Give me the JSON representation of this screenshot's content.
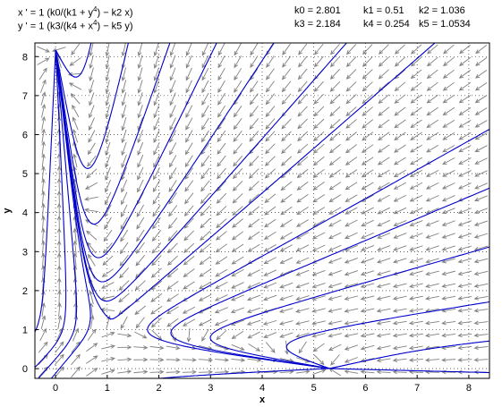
{
  "equations": {
    "x_prefix": "x ' = 1 (k0/(k1 + y",
    "x_exp": "4",
    "x_suffix": ") − k2 x)",
    "y_prefix": "y ' = 1 (k3/(k4 + x",
    "y_exp": "4",
    "y_suffix": ") − k5 y)"
  },
  "parameters": [
    {
      "label": "k0 = 2.801"
    },
    {
      "label": "k1 = 0.51"
    },
    {
      "label": "k2 = 1.036"
    },
    {
      "label": "k3 = 2.184"
    },
    {
      "label": "k4 = 0.254"
    },
    {
      "label": "k5 = 1.0534"
    }
  ],
  "chart_data": {
    "type": "scatter",
    "subtype": "phase-plane direction field with trajectories",
    "title": "",
    "xlabel": "x",
    "ylabel": "y",
    "xlim": [
      -0.4,
      8.4
    ],
    "ylim": [
      -0.25,
      8.35
    ],
    "xticks": [
      "0",
      "1",
      "2",
      "3",
      "4",
      "5",
      "6",
      "7",
      "8"
    ],
    "yticks": [
      "0",
      "1",
      "2",
      "3",
      "4",
      "5",
      "6",
      "7",
      "8"
    ],
    "grid": true,
    "params": {
      "k0": 2.801,
      "k1": 0.51,
      "k2": 1.036,
      "k3": 2.184,
      "k4": 0.254,
      "k5": 1.0534
    },
    "trajectory_color": "#0000cc",
    "arrow_color": "#808080",
    "trajectories": [
      {
        "x0": 0.6,
        "y0": 7.9
      },
      {
        "x0": 1.4,
        "y0": 8.3
      },
      {
        "x0": 2.2,
        "y0": 8.3
      },
      {
        "x0": 3.1,
        "y0": 8.3
      },
      {
        "x0": 4.2,
        "y0": 8.3
      },
      {
        "x0": 5.6,
        "y0": 8.3
      },
      {
        "x0": 7.3,
        "y0": 8.3
      },
      {
        "x0": 8.35,
        "y0": 6.1
      },
      {
        "x0": 8.35,
        "y0": 4.6
      },
      {
        "x0": 8.35,
        "y0": 3.1
      },
      {
        "x0": 8.35,
        "y0": 1.7
      },
      {
        "x0": 8.35,
        "y0": 0.7
      },
      {
        "x0": 8.35,
        "y0": -0.1
      },
      {
        "x0": 0.0,
        "y0": 0.25
      },
      {
        "x0": -0.35,
        "y0": 0.1
      },
      {
        "x0": -0.35,
        "y0": 1.1
      },
      {
        "x0": -0.05,
        "y0": -0.2
      },
      {
        "x0": 2.5,
        "y0": -0.2
      }
    ]
  }
}
